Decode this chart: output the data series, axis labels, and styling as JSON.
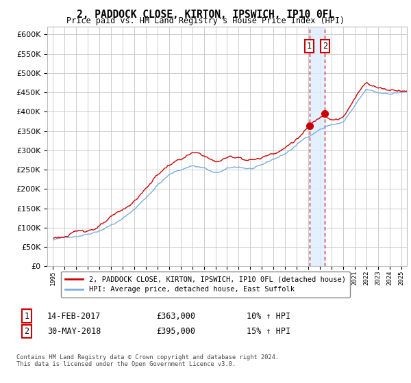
{
  "title": "2, PADDOCK CLOSE, KIRTON, IPSWICH, IP10 0FL",
  "subtitle": "Price paid vs. HM Land Registry's House Price Index (HPI)",
  "legend_line1": "2, PADDOCK CLOSE, KIRTON, IPSWICH, IP10 0FL (detached house)",
  "legend_line2": "HPI: Average price, detached house, East Suffolk",
  "sale1_label": "1",
  "sale1_date": "14-FEB-2017",
  "sale1_price": "£363,000",
  "sale1_hpi": "10% ↑ HPI",
  "sale1_x": 2017.12,
  "sale1_y": 363000,
  "sale2_label": "2",
  "sale2_date": "30-MAY-2018",
  "sale2_price": "£395,000",
  "sale2_hpi": "15% ↑ HPI",
  "sale2_x": 2018.42,
  "sale2_y": 395000,
  "red_color": "#cc0000",
  "blue_color": "#7aace0",
  "vline_color": "#cc0000",
  "vspan_color": "#ddeeff",
  "background_color": "#ffffff",
  "grid_color": "#cccccc",
  "footnote": "Contains HM Land Registry data © Crown copyright and database right 2024.\nThis data is licensed under the Open Government Licence v3.0.",
  "ylim": [
    0,
    620000
  ],
  "xlim": [
    1994.5,
    2025.5
  ],
  "yticks": [
    0,
    50000,
    100000,
    150000,
    200000,
    250000,
    300000,
    350000,
    400000,
    450000,
    500000,
    550000,
    600000
  ]
}
